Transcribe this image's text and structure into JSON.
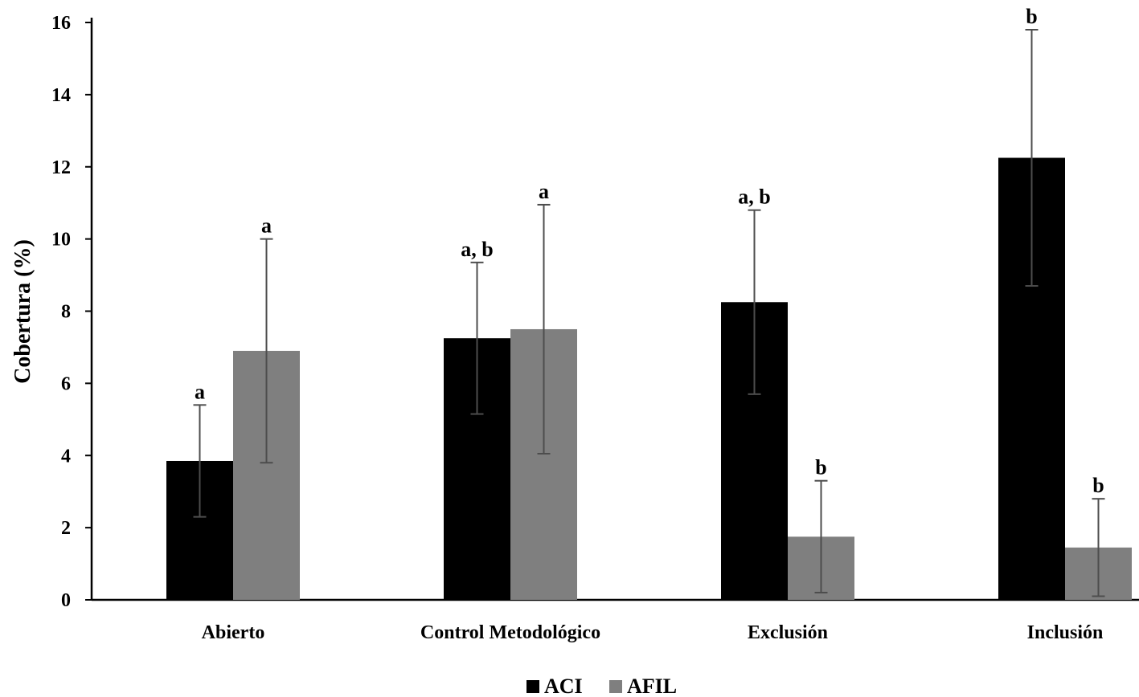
{
  "chart_data": {
    "type": "bar",
    "title": "",
    "xlabel": "",
    "ylabel": "Cobertura (%)",
    "ylim": [
      0,
      16
    ],
    "yticks": [
      "0",
      "2",
      "4",
      "6",
      "8",
      "10",
      "12",
      "14",
      "16"
    ],
    "grid": false,
    "legend_position": "bottom-center",
    "categories": [
      "Abierto",
      "Control Metodológico",
      "Exclusión",
      "Inclusión"
    ],
    "series": [
      {
        "name": "ACI",
        "color": "#000000",
        "values": [
          3.85,
          7.25,
          8.25,
          12.25
        ],
        "error": [
          1.55,
          2.1,
          2.55,
          3.55
        ],
        "labels": [
          "a",
          "a, b",
          "a, b",
          "b"
        ]
      },
      {
        "name": "AFIL",
        "color": "#7f7f7f",
        "values": [
          6.9,
          7.5,
          1.75,
          1.45
        ],
        "error": [
          3.1,
          3.45,
          1.55,
          1.35
        ],
        "labels": [
          "a",
          "a",
          "b",
          "b"
        ]
      }
    ]
  }
}
